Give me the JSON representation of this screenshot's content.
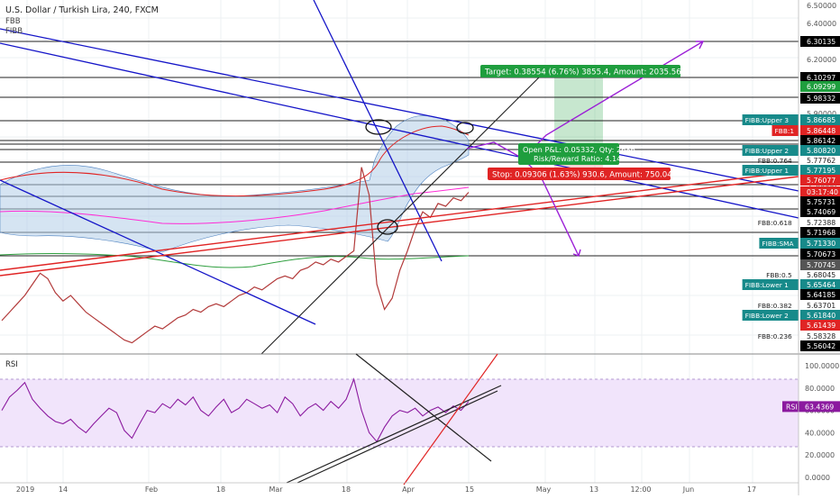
{
  "header": {
    "symbol_title": "U.S. Dollar / Turkish Lira, 240, FXCM",
    "indicator_1": "FBB",
    "indicator_2": "FIBB"
  },
  "trade": {
    "target_label": "Target: 0.38554 (6.76%) 3855.4, Amount: 2035.56",
    "open_pl_label": "Open P&L: 0.05332, Qty: 2686",
    "risk_reward_label": "Risk/Reward Ratio: 4.14",
    "stop_label": "Stop: 0.09306 (1.63%) 930.6, Amount: 750.04",
    "target_price": 6.09,
    "entry_price": 5.705,
    "stop_price": 5.61
  },
  "colors": {
    "price_up": "#26a69a",
    "price_down": "#ef5350",
    "band_fill": "#b3cde8",
    "trendline_blue": "#1515c8",
    "trendline_red": "#e02424",
    "target_green": "#1f9e3e",
    "stop_red": "#e02424",
    "fib_green": "#2f7f5e",
    "arrow_purple": "#9b1fd6",
    "rsi_line": "#8b1a9f",
    "rsi_fill": "#f1e4fb"
  },
  "price_axis": {
    "ticks": [
      "6.50000",
      "6.40000",
      "6.20000",
      "6.00000",
      "5.90000",
      "5.60000",
      "5.50000"
    ],
    "badges": [
      {
        "label": "",
        "value": "6.30135",
        "price": 6.30135,
        "bg": "#000000",
        "fg": "#ffffff"
      },
      {
        "label": "",
        "value": "6.10297",
        "price": 6.10297,
        "bg": "#000000",
        "fg": "#ffffff"
      },
      {
        "label": "",
        "value": "6.09299",
        "price": 6.09299,
        "bg": "#1f9e3e",
        "fg": "#ffffff"
      },
      {
        "label": "",
        "value": "5.98332",
        "price": 5.98332,
        "bg": "#000000",
        "fg": "#ffffff"
      },
      {
        "label": "FIBB:Upper 3",
        "value": "5.86685",
        "price": 5.86685,
        "bg": "#178a8a",
        "fg": "#ffffff"
      },
      {
        "label": "FBB:1",
        "value": "5.86448",
        "price": 5.86448,
        "bg": "#e02424",
        "fg": "#ffffff"
      },
      {
        "label": "",
        "value": "5.86142",
        "price": 5.86142,
        "bg": "#000000",
        "fg": "#ffffff"
      },
      {
        "label": "FIBB:Upper 2",
        "value": "5.80820",
        "price": 5.8082,
        "bg": "#178a8a",
        "fg": "#ffffff"
      },
      {
        "label": "FBB:0.764",
        "value": "5.77762",
        "price": 5.77762,
        "bg": "#ffffff",
        "fg": "#222222"
      },
      {
        "label": "FIBB:Upper 1",
        "value": "5.77195",
        "price": 5.77195,
        "bg": "#178a8a",
        "fg": "#ffffff"
      },
      {
        "label": "",
        "value": "5.76077",
        "price": 5.76077,
        "bg": "#e02424",
        "fg": "#ffffff"
      },
      {
        "label": "",
        "value": "03:17:40",
        "price": 5.7485,
        "bg": "#e02424",
        "fg": "#ffffff"
      },
      {
        "label": "",
        "value": "5.75731",
        "price": 5.75731,
        "bg": "#000000",
        "fg": "#ffffff"
      },
      {
        "label": "",
        "value": "5.74069",
        "price": 5.74069,
        "bg": "#000000",
        "fg": "#ffffff"
      },
      {
        "label": "FBB:0.618",
        "value": "5.72388",
        "price": 5.72388,
        "bg": "#ffffff",
        "fg": "#222222"
      },
      {
        "label": "",
        "value": "5.71968",
        "price": 5.71968,
        "bg": "#000000",
        "fg": "#ffffff"
      },
      {
        "label": "FIBB:SMA",
        "value": "5.71330",
        "price": 5.7133,
        "bg": "#178a8a",
        "fg": "#ffffff"
      },
      {
        "label": "",
        "value": "5.70673",
        "price": 5.70673,
        "bg": "#000000",
        "fg": "#ffffff"
      },
      {
        "label": "",
        "value": "5.70745",
        "price": 5.70745,
        "bg": "#555555",
        "fg": "#ffffff"
      },
      {
        "label": "FBB:0.5",
        "value": "5.68045",
        "price": 5.68045,
        "bg": "#ffffff",
        "fg": "#222222"
      },
      {
        "label": "FIBB:Lower 1",
        "value": "5.65464",
        "price": 5.65464,
        "bg": "#178a8a",
        "fg": "#ffffff"
      },
      {
        "label": "",
        "value": "5.64185",
        "price": 5.64185,
        "bg": "#000000",
        "fg": "#ffffff"
      },
      {
        "label": "FBB:0.382",
        "value": "5.63701",
        "price": 5.63701,
        "bg": "#ffffff",
        "fg": "#222222"
      },
      {
        "label": "FIBB:Lower 2",
        "value": "5.61840",
        "price": 5.6184,
        "bg": "#178a8a",
        "fg": "#ffffff"
      },
      {
        "label": "",
        "value": "5.61439",
        "price": 5.61439,
        "bg": "#e02424",
        "fg": "#ffffff"
      },
      {
        "label": "FBB:0.236",
        "value": "5.58328",
        "price": 5.58328,
        "bg": "#ffffff",
        "fg": "#222222"
      },
      {
        "label": "",
        "value": "5.56042",
        "price": 5.56042,
        "bg": "#000000",
        "fg": "#ffffff"
      }
    ]
  },
  "rsi": {
    "title": "RSI",
    "ticks": [
      "100.0000",
      "80.0000",
      "60.0000",
      "40.0000",
      "20.0000",
      "0.0000"
    ],
    "badge_label": "RSI",
    "badge_value": "63.4369",
    "upper_band": 80,
    "lower_band": 20,
    "current": 63.4369
  },
  "time_axis": {
    "labels": [
      "2019",
      "14",
      "Feb",
      "18",
      "Mar",
      "18",
      "Apr",
      "15",
      "May",
      "13",
      "12:00",
      "Jun",
      "17"
    ]
  },
  "chart_data": {
    "type": "line",
    "series": [
      {
        "values": [
          5.37,
          5.4,
          5.43,
          5.46,
          5.5,
          5.54,
          5.52,
          5.47,
          5.44,
          5.46,
          5.43,
          5.4,
          5.38,
          5.36,
          5.34,
          5.32,
          5.3,
          5.29,
          5.31,
          5.33,
          5.35,
          5.34,
          5.36,
          5.38,
          5.39,
          5.41,
          5.4,
          5.42,
          5.43,
          5.42,
          5.44,
          5.46,
          5.47,
          5.49,
          5.48,
          5.5,
          5.52,
          5.53,
          5.52,
          5.55,
          5.56,
          5.58,
          5.57,
          5.59,
          5.58,
          5.6,
          5.62,
          5.92,
          5.82,
          5.5,
          5.41,
          5.45,
          5.55,
          5.62,
          5.7,
          5.76,
          5.74,
          5.79,
          5.78,
          5.81,
          5.8,
          5.83
        ]
      }
    ],
    "ylim": [
      5.25,
      6.52
    ],
    "rsi_values": [
      60,
      72,
      78,
      85,
      70,
      62,
      55,
      50,
      48,
      52,
      45,
      40,
      48,
      55,
      62,
      58,
      42,
      35,
      48,
      60,
      58,
      66,
      62,
      70,
      65,
      72,
      60,
      55,
      63,
      70,
      58,
      62,
      70,
      66,
      62,
      65,
      58,
      72,
      66,
      55,
      62,
      66,
      60,
      68,
      62,
      70,
      88,
      60,
      40,
      32,
      45,
      55,
      60,
      58,
      62,
      55,
      60,
      63,
      58,
      64,
      60,
      68
    ],
    "rsi_ylim": [
      -5,
      105
    ]
  }
}
